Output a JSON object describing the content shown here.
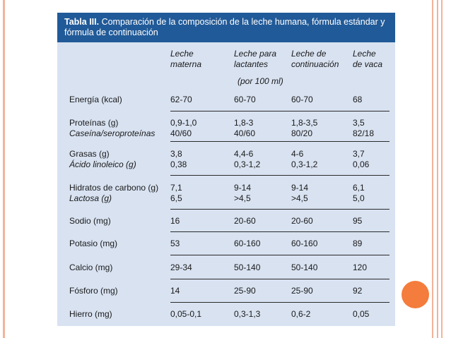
{
  "table": {
    "title_label": "Tabla III.",
    "title_text": " Comparación de la composición de la leche humana, fórmula estándar y fórmula de continuación",
    "columns": [
      "Leche\nmaterna",
      "Leche para\nlactantes",
      "Leche de\ncontinuación",
      "Leche\nde vaca"
    ],
    "unit": "(por 100 ml)",
    "rows": [
      {
        "label": "Energía (kcal)",
        "values": [
          "62-70",
          "60-70",
          "60-70",
          "68"
        ]
      },
      {
        "label": "Proteínas (g)",
        "sublabel": "Caseína/seroproteínas",
        "values": [
          "0,9-1,0",
          "1,8-3",
          "1,8-3,5",
          "3,5"
        ],
        "subvalues": [
          "40/60",
          "40/60",
          "80/20",
          "82/18"
        ]
      },
      {
        "label": "Grasas (g)",
        "sublabel": "Ácido linoleico (g)",
        "values": [
          "3,8",
          "4,4-6",
          "4-6",
          "3,7"
        ],
        "subvalues": [
          "0,38",
          "0,3-1,2",
          "0,3-1,2",
          "0,06"
        ]
      },
      {
        "label": "Hidratos de carbono (g)",
        "sublabel": "Lactosa (g)",
        "values": [
          "7,1",
          "9-14",
          "9-14",
          "6,1"
        ],
        "subvalues": [
          "6,5",
          ">4,5",
          ">4,5",
          "5,0"
        ]
      },
      {
        "label": "Sodio (mg)",
        "values": [
          "16",
          "20-60",
          "20-60",
          "95"
        ]
      },
      {
        "label": "Potasio (mg)",
        "values": [
          "53",
          "60-160",
          "60-160",
          "89"
        ]
      },
      {
        "label": "Calcio (mg)",
        "values": [
          "29-34",
          "50-140",
          "50-140",
          "120"
        ]
      },
      {
        "label": "Fósforo (mg)",
        "values": [
          "14",
          "25-90",
          "25-90",
          "92"
        ]
      },
      {
        "label": "Hierro (mg)",
        "values": [
          "0,05-0,1",
          "0,3-1,3",
          "0,6-2",
          "0,05"
        ]
      }
    ]
  },
  "colors": {
    "header_bg": "#215a98",
    "table_bg": "#d8e2f1",
    "accent_dot": "#f47c3c",
    "border_lines": "#f2b49a"
  }
}
